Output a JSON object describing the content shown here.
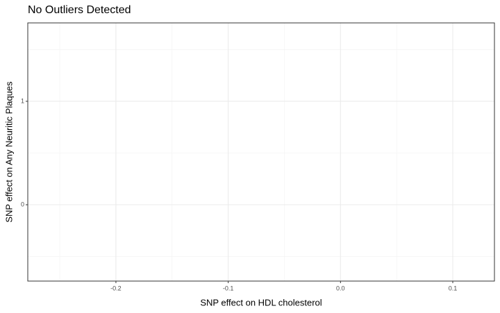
{
  "chart_data": {
    "type": "scatter",
    "title": "No Outliers Detected",
    "x_label": "SNP effect on HDL cholesterol",
    "y_label": "SNP effect on Any Neuritic Plaques",
    "xlim": [
      -0.2785,
      0.1371
    ],
    "ylim": [
      -0.738,
      1.758
    ],
    "xticks": [
      -0.2,
      -0.1,
      {
        "value": 0,
        "label": "0.0"
      },
      0.1
    ],
    "yticks": [
      0,
      1
    ],
    "grid": true
  }
}
